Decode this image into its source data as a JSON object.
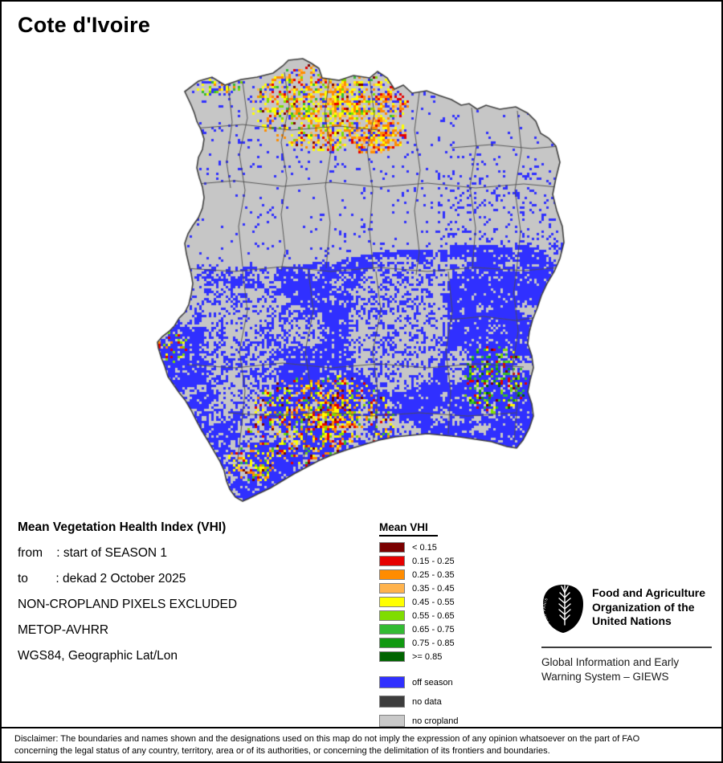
{
  "header": {
    "title": "Cote d'Ivoire"
  },
  "info": {
    "heading": "Mean Vegetation Health Index (VHI)",
    "details": [
      "from    : start of SEASON 1",
      "to        : dekad 2 October 2025",
      "NON-CROPLAND PIXELS EXCLUDED",
      "METOP-AVHRR",
      "WGS84, Geographic Lat/Lon"
    ]
  },
  "legend": {
    "title": "Mean VHI",
    "classes": [
      {
        "label": "< 0.15",
        "color": "#7a0000"
      },
      {
        "label": "0.15 - 0.25",
        "color": "#e60000"
      },
      {
        "label": "0.25 - 0.35",
        "color": "#ff8c00"
      },
      {
        "label": "0.35 - 0.45",
        "color": "#ffb34d"
      },
      {
        "label": "0.45 - 0.55",
        "color": "#ffff00"
      },
      {
        "label": "0.55 - 0.65",
        "color": "#7fdd00"
      },
      {
        "label": "0.65 - 0.75",
        "color": "#33bb33"
      },
      {
        "label": "0.75 - 0.85",
        "color": "#119911"
      },
      {
        "label": ">= 0.85",
        "color": "#006400"
      }
    ],
    "extra": [
      {
        "label": "off season",
        "color": "#3030ff"
      },
      {
        "label": "no data",
        "color": "#3d3d3d"
      },
      {
        "label": "no cropland",
        "color": "#c9c9c9"
      }
    ]
  },
  "map": {
    "colors": {
      "nocropland": "#c6c6c6",
      "admin": "#4d4d4d",
      "border": "#3f3f3f"
    }
  },
  "org": {
    "logo_motto": "FIAT PANIS",
    "name_lines": [
      "Food and Agriculture",
      "Organization of the",
      "United Nations"
    ],
    "giews_lines": [
      "Global Information and Early",
      "Warning System – GIEWS"
    ]
  },
  "disclaimer": {
    "lines": [
      "Disclaimer: The boundaries and names shown and the designations used on this map do not imply the expression of any opinion whatsoever on the part of FAO",
      "concerning the legal status of any country, territory, area or of its authorities, or concerning the delimitation of its frontiers and boundaries."
    ]
  }
}
